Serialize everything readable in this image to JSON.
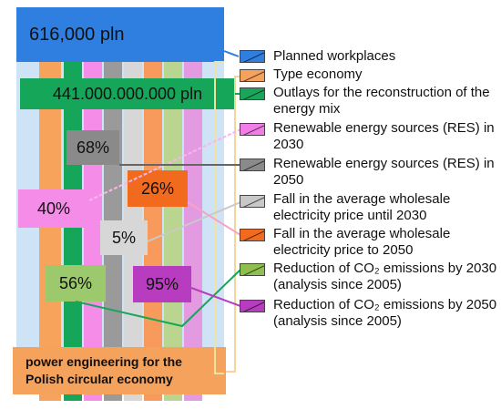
{
  "boxes": {
    "workplaces": "616,000 pln",
    "outlays": "441.000.000.000  pln",
    "res_2050": "68%",
    "res_2030": "40%",
    "price_2050": "26%",
    "price_2030": "5%",
    "co2_2030": "56%",
    "co2_2050": "95%",
    "footer": "power engineering for the Polish circular economy"
  },
  "legend": [
    {
      "text": "Planned workplaces",
      "color": "#2f7fe0"
    },
    {
      "text": "Type economy",
      "color": "#f5a25c"
    },
    {
      "text": "Outlays for the reconstruction of the energy mix",
      "color": "#1aa55a"
    },
    {
      "text": "Renewable energy sources (RES) in 2030",
      "color": "#f27de6"
    },
    {
      "text": "Renewable energy sources (RES) in 2050",
      "color": "#8a8a8a"
    },
    {
      "text": "Fall in the average wholesale electricity price until 2030",
      "color": "#c8c8c8"
    },
    {
      "text": "Fall in the average wholesale electricity price to 2050",
      "color": "#f26a1e"
    },
    {
      "text": "Reduction of CO₂ emissions by 2030 (analysis since 2005)",
      "color": "#8fbf4e"
    },
    {
      "text": "Reduction of CO₂ emissions by 2050 (analysis since 2005)",
      "color": "#b83cbf"
    }
  ]
}
